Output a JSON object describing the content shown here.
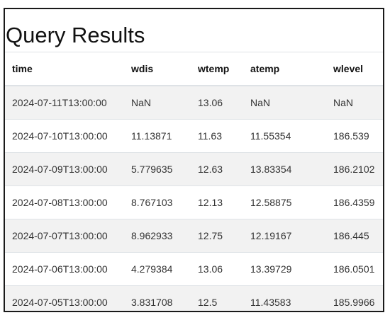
{
  "title": "Query Results",
  "table": {
    "columns": [
      "time",
      "wdis",
      "wtemp",
      "atemp",
      "wlevel"
    ],
    "rows": [
      [
        "2024-07-11T13:00:00",
        "NaN",
        "13.06",
        "NaN",
        "NaN"
      ],
      [
        "2024-07-10T13:00:00",
        "11.13871",
        "11.63",
        "11.55354",
        "186.539"
      ],
      [
        "2024-07-09T13:00:00",
        "5.779635",
        "12.63",
        "13.83354",
        "186.2102"
      ],
      [
        "2024-07-08T13:00:00",
        "8.767103",
        "12.13",
        "12.58875",
        "186.4359"
      ],
      [
        "2024-07-07T13:00:00",
        "8.962933",
        "12.75",
        "12.19167",
        "186.445"
      ],
      [
        "2024-07-06T13:00:00",
        "4.279384",
        "13.06",
        "13.39729",
        "186.0501"
      ],
      [
        "2024-07-05T13:00:00",
        "3.831708",
        "12.5",
        "11.43583",
        "185.9966"
      ]
    ]
  }
}
